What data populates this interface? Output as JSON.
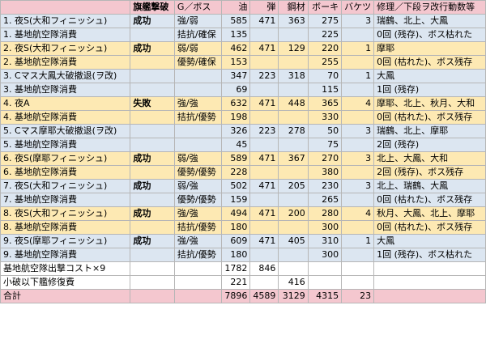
{
  "header": [
    "",
    "旗艦撃破",
    "G／ボス",
    "油",
    "弾",
    "鋼材",
    "ボーキ",
    "バケツ",
    "修理／下段ヲ改行動数等"
  ],
  "rows": [
    {
      "color": "blue",
      "cells": [
        "1. 夜S(大和フィニッシュ)",
        "成功",
        "強/弱",
        "585",
        "471",
        "363",
        "275",
        "3",
        "瑞鶴、北上、大鳳"
      ]
    },
    {
      "color": "blue",
      "cells": [
        "1. 基地航空隊消費",
        "",
        "拮抗/確保",
        "135",
        "",
        "",
        "225",
        "",
        "0回 (残存)、ボス枯れた"
      ]
    },
    {
      "color": "yellow",
      "cells": [
        "2. 夜S(大和フィニッシュ)",
        "成功",
        "弱/弱",
        "462",
        "471",
        "129",
        "220",
        "1",
        "摩耶"
      ]
    },
    {
      "color": "yellow",
      "cells": [
        "2. 基地航空隊消費",
        "",
        "優勢/確保",
        "153",
        "",
        "",
        "255",
        "",
        "0回 (枯れた)、ボス残存"
      ]
    },
    {
      "color": "blue",
      "cells": [
        "3. Cマス大鳳大破撤退(ヲ改)",
        "",
        "",
        "347",
        "223",
        "318",
        "70",
        "1",
        "大鳳"
      ]
    },
    {
      "color": "blue",
      "cells": [
        "3. 基地航空隊消費",
        "",
        "",
        "69",
        "",
        "",
        "115",
        "",
        "1回 (残存)"
      ]
    },
    {
      "color": "yellow",
      "cells": [
        "4. 夜A",
        "失敗",
        "強/強",
        "632",
        "471",
        "448",
        "365",
        "4",
        "摩耶、北上、秋月、大和"
      ]
    },
    {
      "color": "yellow",
      "cells": [
        "4. 基地航空隊消費",
        "",
        "拮抗/優勢",
        "198",
        "",
        "",
        "330",
        "",
        "0回 (枯れた)、ボス残存"
      ]
    },
    {
      "color": "blue",
      "cells": [
        "5. Cマス摩耶大破撤退(ヲ改)",
        "",
        "",
        "326",
        "223",
        "278",
        "50",
        "3",
        "瑞鶴、北上、摩耶"
      ]
    },
    {
      "color": "blue",
      "cells": [
        "5. 基地航空隊消費",
        "",
        "",
        "45",
        "",
        "",
        "75",
        "",
        "2回 (残存)"
      ]
    },
    {
      "color": "yellow",
      "cells": [
        "6. 夜S(摩耶フィニッシュ)",
        "成功",
        "弱/強",
        "589",
        "471",
        "367",
        "270",
        "3",
        "北上、大鳳、大和"
      ]
    },
    {
      "color": "yellow",
      "cells": [
        "6. 基地航空隊消費",
        "",
        "優勢/優勢",
        "228",
        "",
        "",
        "380",
        "",
        "2回 (残存)、ボス残存"
      ]
    },
    {
      "color": "blue",
      "cells": [
        "7. 夜S(大和フィニッシュ)",
        "成功",
        "弱/強",
        "502",
        "471",
        "205",
        "230",
        "3",
        "北上、瑞鶴、大鳳"
      ]
    },
    {
      "color": "blue",
      "cells": [
        "7. 基地航空隊消費",
        "",
        "優勢/優勢",
        "159",
        "",
        "",
        "265",
        "",
        "0回 (枯れた)、ボス残存"
      ]
    },
    {
      "color": "yellow",
      "cells": [
        "8. 夜S(大和フィニッシュ)",
        "成功",
        "強/強",
        "494",
        "471",
        "200",
        "280",
        "4",
        "秋月、大鳳、北上、摩耶"
      ]
    },
    {
      "color": "yellow",
      "cells": [
        "8. 基地航空隊消費",
        "",
        "拮抗/優勢",
        "180",
        "",
        "",
        "300",
        "",
        "0回 (枯れた)、ボス残存"
      ]
    },
    {
      "color": "blue",
      "cells": [
        "9. 夜S(摩耶フィニッシュ)",
        "成功",
        "強/強",
        "609",
        "471",
        "405",
        "310",
        "1",
        "大鳳"
      ]
    },
    {
      "color": "blue",
      "cells": [
        "9. 基地航空隊消費",
        "",
        "拮抗/優勢",
        "180",
        "",
        "",
        "300",
        "",
        "1回 (残存)、ボス枯れた"
      ]
    },
    {
      "color": "white",
      "cells": [
        "基地航空隊出撃コスト×9",
        "",
        "",
        "1782",
        "846",
        "",
        "",
        "",
        ""
      ]
    },
    {
      "color": "white",
      "cells": [
        "小破以下艦修復費",
        "",
        "",
        "221",
        "",
        "416",
        "",
        "",
        ""
      ]
    },
    {
      "color": "total",
      "cells": [
        "合計",
        "",
        "",
        "7896",
        "4589",
        "3129",
        "4315",
        "23",
        ""
      ]
    }
  ]
}
